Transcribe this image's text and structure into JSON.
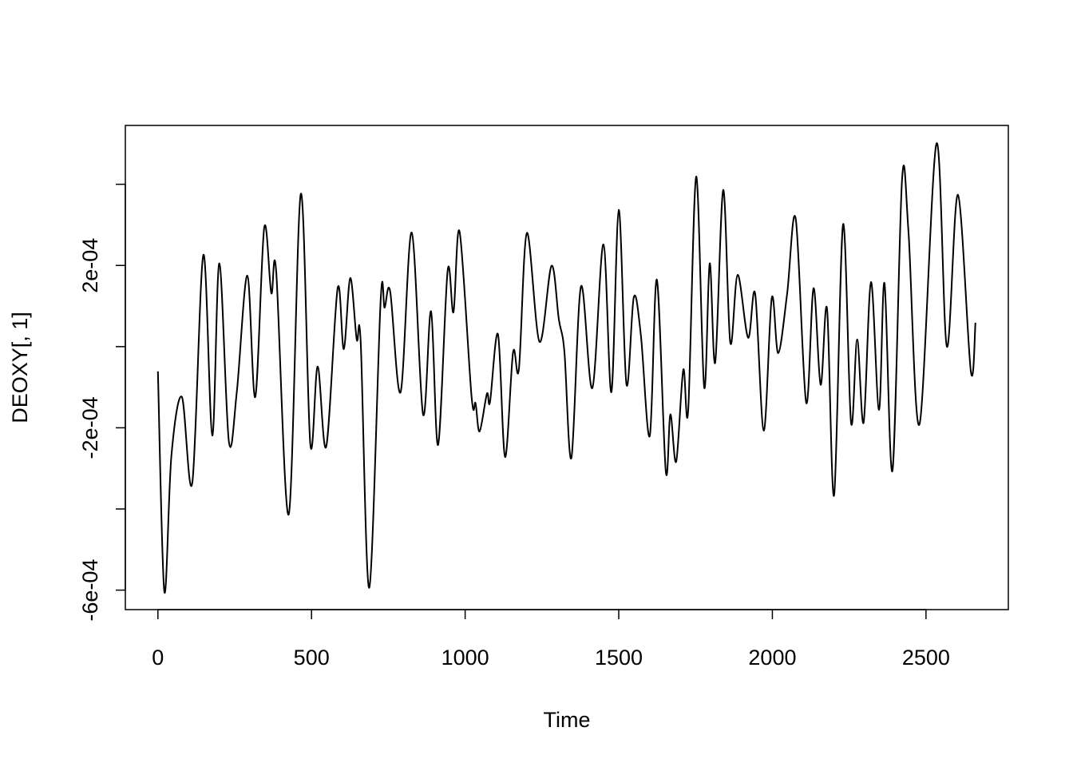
{
  "chart_data": {
    "type": "line",
    "xlabel": "Time",
    "ylabel": "DEOXY[, 1]",
    "xlim": [
      -106,
      2768
    ],
    "ylim": [
      -0.000648,
      0.000545
    ],
    "xticks": [
      0,
      500,
      1000,
      1500,
      2000,
      2500
    ],
    "yticks": [
      {
        "value": -0.0006,
        "label": "-6e-04"
      },
      {
        "value": -0.0002,
        "label": "-2e-04"
      },
      {
        "value": 0.0002,
        "label": "2e-04"
      }
    ],
    "yminor_ticks": [
      -0.0004,
      0,
      0.0004
    ],
    "grid": false,
    "series": [
      {
        "color": "#000000",
        "x": [
          0,
          21,
          44,
          78,
          112,
          148,
          177,
          200,
          231,
          257,
          291,
          317,
          346,
          369,
          385,
          426,
          465,
          496,
          520,
          548,
          585,
          605,
          626,
          647,
          660,
          688,
          725,
          738,
          756,
          790,
          826,
          863,
          889,
          912,
          943,
          962,
          982,
          1021,
          1034,
          1047,
          1071,
          1081,
          1107,
          1130,
          1156,
          1175,
          1201,
          1242,
          1281,
          1305,
          1323,
          1346,
          1377,
          1414,
          1450,
          1476,
          1500,
          1525,
          1549,
          1572,
          1601,
          1624,
          1653,
          1668,
          1687,
          1710,
          1726,
          1752,
          1778,
          1796,
          1814,
          1840,
          1863,
          1887,
          1921,
          1944,
          1972,
          1998,
          2019,
          2048,
          2076,
          2110,
          2134,
          2157,
          2178,
          2201,
          2230,
          2256,
          2276,
          2297,
          2321,
          2347,
          2365,
          2391,
          2422,
          2443,
          2479,
          2534,
          2568,
          2604,
          2646,
          2661
        ],
        "values": [
          -6.1e-05,
          -0.000604,
          -0.000268,
          -0.000124,
          -0.000335,
          0.000226,
          -0.000219,
          0.000205,
          -0.000234,
          -0.00011,
          0.000175,
          -0.000124,
          0.000293,
          0.000132,
          0.000185,
          -0.000413,
          0.000376,
          -0.00024,
          -4.9e-05,
          -0.000246,
          0.000144,
          -6e-06,
          0.000169,
          1.8e-05,
          1.2e-05,
          -0.000594,
          0.000114,
          9.6e-05,
          0.000136,
          -0.000112,
          0.000281,
          -0.000167,
          8.7e-05,
          -0.000242,
          0.000187,
          8.5e-05,
          0.000283,
          -0.000124,
          -0.00014,
          -0.000209,
          -0.000116,
          -0.000136,
          3e-05,
          -0.000272,
          -1.4e-05,
          -5.5e-05,
          0.00028,
          1.2e-05,
          0.000199,
          6.7e-05,
          -1.2e-05,
          -0.000274,
          0.000148,
          -0.000102,
          0.000252,
          -0.000112,
          0.000337,
          -9.3e-05,
          0.000122,
          2.8e-05,
          -0.00022,
          0.000165,
          -0.000307,
          -0.000167,
          -0.000283,
          -5.7e-05,
          -0.000157,
          0.000419,
          -0.0001,
          0.000205,
          -3.9e-05,
          0.000386,
          1e-05,
          0.000177,
          2.2e-05,
          0.00013,
          -0.000207,
          0.00012,
          -1.6e-05,
          0.00013,
          0.000315,
          -0.000138,
          0.000144,
          -9.4e-05,
          9.3e-05,
          -0.000366,
          0.000301,
          -0.000187,
          1.8e-05,
          -0.000187,
          0.000159,
          -0.000156,
          0.000156,
          -0.000305,
          0.000411,
          0.000283,
          -0.000191,
          0.0005,
          0,
          0.000374,
          -6.1e-05,
          5.9e-05
        ]
      }
    ]
  }
}
